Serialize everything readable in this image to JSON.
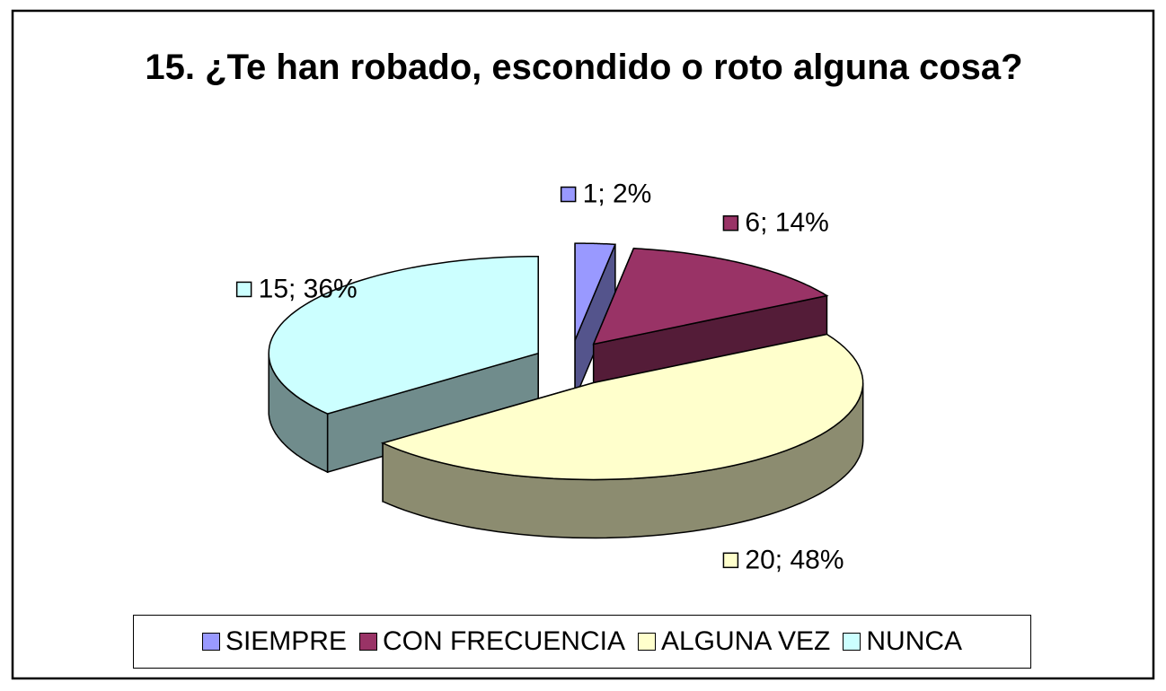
{
  "chart_data": {
    "type": "pie3d",
    "title": "15. ¿Te han robado, escondido o roto alguna cosa?",
    "categories": [
      "SIEMPRE",
      "CON FRECUENCIA",
      "ALGUNA VEZ",
      "NUNCA"
    ],
    "values": [
      1,
      6,
      20,
      15
    ],
    "value_labels": [
      "1; 2%",
      "6; 14%",
      "20; 48%",
      "15; 36%"
    ],
    "colors": [
      "#9999ff",
      "#993366",
      "#ffffcc",
      "#ccffff"
    ],
    "legend": "bottom"
  }
}
